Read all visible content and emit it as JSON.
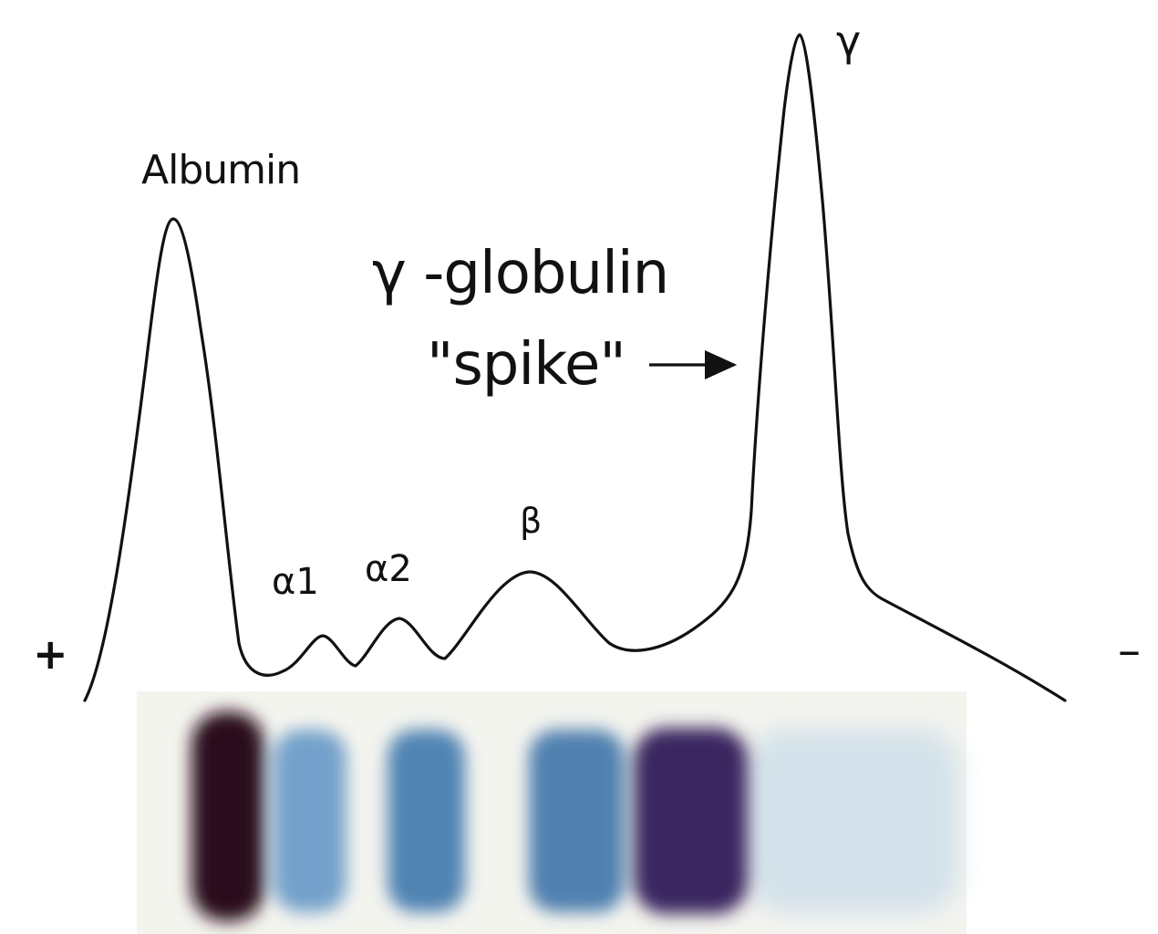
{
  "labels": {
    "albumin": "Albumin",
    "alpha1": "α1",
    "alpha2": "α2",
    "beta": "β",
    "gamma": "γ",
    "spike_line1": "γ -globulin",
    "spike_line2": "\"spike\"",
    "anode": "+",
    "cathode": "–"
  },
  "colors": {
    "curve": "#111111",
    "gel_background": "#f4f4ef",
    "albumin_band": "#2a0f1a",
    "globulin_band": "#3f78ad",
    "gamma_band": "#3a2760",
    "gamma_tail": "#c9dce8"
  }
}
